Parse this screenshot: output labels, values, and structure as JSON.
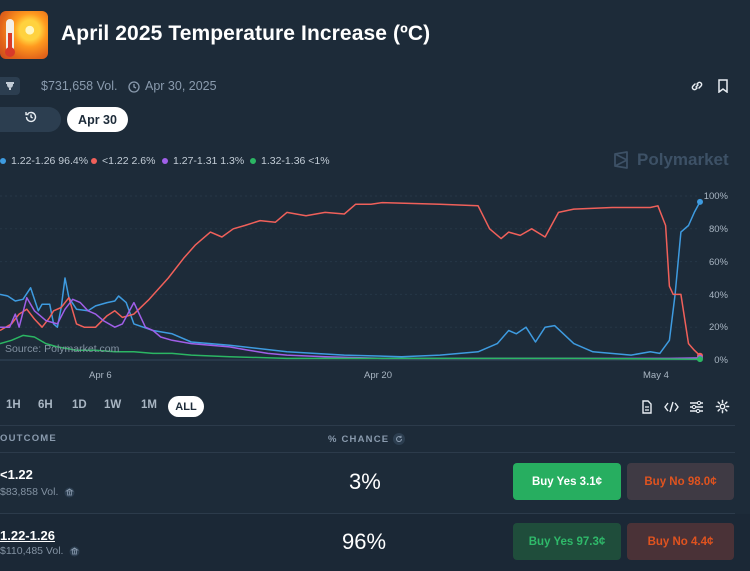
{
  "header": {
    "title": "April 2025 Temperature Increase (ºC)",
    "volume": "$731,658 Vol.",
    "date": "Apr 30, 2025"
  },
  "controls": {
    "date_pill": "Apr 30"
  },
  "legend": [
    {
      "label": "1.22-1.26 96.4%",
      "color": "#3e9be0"
    },
    {
      "label": "<1.22 2.6%",
      "color": "#f0605a"
    },
    {
      "label": "1.27-1.31 1.3%",
      "color": "#a05fe8"
    },
    {
      "label": "1.32-1.36 <1%",
      "color": "#2bb663"
    }
  ],
  "brand": "Polymarket",
  "chart": {
    "source": "Source: Polymarket.com",
    "y_ticks": [
      "100%",
      "80%",
      "60%",
      "40%",
      "20%",
      "0%"
    ],
    "x_ticks": [
      "Apr 6",
      "Apr 20",
      "May 4"
    ]
  },
  "chart_data": {
    "type": "line",
    "ylim": [
      0,
      100
    ],
    "x_ticks": [
      "Apr 6",
      "Apr 20",
      "May 4"
    ],
    "series": [
      {
        "name": "1.22-1.26",
        "color": "#3e9be0",
        "values": [
          [
            0,
            40
          ],
          [
            4,
            39
          ],
          [
            8,
            36
          ],
          [
            12,
            37
          ],
          [
            16,
            44
          ],
          [
            20,
            30
          ],
          [
            22,
            34
          ],
          [
            26,
            34
          ],
          [
            28,
            22
          ],
          [
            30,
            20
          ],
          [
            32,
            32
          ],
          [
            34,
            50
          ],
          [
            36,
            38
          ],
          [
            40,
            31
          ],
          [
            46,
            30
          ],
          [
            50,
            33
          ],
          [
            56,
            35
          ],
          [
            60,
            36
          ],
          [
            62,
            39
          ],
          [
            66,
            35
          ],
          [
            70,
            22
          ],
          [
            80,
            18
          ],
          [
            90,
            16
          ],
          [
            100,
            11
          ],
          [
            120,
            9
          ],
          [
            150,
            5
          ],
          [
            180,
            3
          ],
          [
            210,
            2
          ],
          [
            230,
            3
          ],
          [
            250,
            5
          ],
          [
            260,
            10
          ],
          [
            266,
            18
          ],
          [
            270,
            16
          ],
          [
            275,
            20
          ],
          [
            280,
            11
          ],
          [
            285,
            20
          ],
          [
            290,
            21
          ],
          [
            300,
            10
          ],
          [
            310,
            5
          ],
          [
            330,
            3
          ],
          [
            340,
            5
          ],
          [
            345,
            4
          ],
          [
            350,
            12
          ],
          [
            353,
            40
          ],
          [
            356,
            78
          ],
          [
            360,
            82
          ],
          [
            363,
            90
          ],
          [
            366,
            96.4
          ]
        ]
      },
      {
        "name": "<1.22",
        "color": "#f0605a",
        "values": [
          [
            0,
            18
          ],
          [
            6,
            22
          ],
          [
            10,
            28
          ],
          [
            14,
            31
          ],
          [
            18,
            25
          ],
          [
            22,
            20
          ],
          [
            26,
            26
          ],
          [
            28,
            30
          ],
          [
            32,
            32
          ],
          [
            36,
            38
          ],
          [
            40,
            22
          ],
          [
            44,
            20
          ],
          [
            50,
            20
          ],
          [
            56,
            27
          ],
          [
            60,
            30
          ],
          [
            64,
            26
          ],
          [
            70,
            28
          ],
          [
            78,
            37
          ],
          [
            88,
            50
          ],
          [
            96,
            62
          ],
          [
            102,
            70
          ],
          [
            110,
            78
          ],
          [
            116,
            75
          ],
          [
            122,
            80
          ],
          [
            128,
            82
          ],
          [
            136,
            85
          ],
          [
            144,
            84
          ],
          [
            150,
            90
          ],
          [
            160,
            88
          ],
          [
            170,
            90
          ],
          [
            180,
            89
          ],
          [
            186,
            95
          ],
          [
            194,
            95
          ],
          [
            200,
            96
          ],
          [
            230,
            95
          ],
          [
            250,
            94
          ],
          [
            256,
            80
          ],
          [
            262,
            74
          ],
          [
            266,
            78
          ],
          [
            272,
            76
          ],
          [
            278,
            80
          ],
          [
            285,
            75
          ],
          [
            292,
            90
          ],
          [
            300,
            92
          ],
          [
            320,
            93
          ],
          [
            340,
            93
          ],
          [
            344,
            94
          ],
          [
            348,
            82
          ],
          [
            350,
            45
          ],
          [
            352,
            40
          ],
          [
            356,
            40
          ],
          [
            360,
            10
          ],
          [
            363,
            6
          ],
          [
            366,
            2.6
          ]
        ]
      },
      {
        "name": "1.27-1.31",
        "color": "#a05fe8",
        "values": [
          [
            0,
            20
          ],
          [
            5,
            20
          ],
          [
            8,
            28
          ],
          [
            10,
            20
          ],
          [
            14,
            38
          ],
          [
            18,
            30
          ],
          [
            24,
            24
          ],
          [
            30,
            22
          ],
          [
            34,
            31
          ],
          [
            38,
            37
          ],
          [
            42,
            35
          ],
          [
            46,
            30
          ],
          [
            50,
            28
          ],
          [
            54,
            24
          ],
          [
            60,
            20
          ],
          [
            64,
            22
          ],
          [
            70,
            35
          ],
          [
            76,
            20
          ],
          [
            80,
            18
          ],
          [
            84,
            14
          ],
          [
            90,
            12
          ],
          [
            100,
            10
          ],
          [
            110,
            9
          ],
          [
            120,
            8
          ],
          [
            130,
            6
          ],
          [
            140,
            4
          ],
          [
            150,
            3
          ],
          [
            170,
            2
          ],
          [
            200,
            1
          ],
          [
            250,
            1
          ],
          [
            300,
            1
          ],
          [
            350,
            1
          ],
          [
            366,
            1.3
          ]
        ]
      },
      {
        "name": "1.32-1.36",
        "color": "#2bb663",
        "values": [
          [
            0,
            10
          ],
          [
            6,
            12
          ],
          [
            12,
            15
          ],
          [
            18,
            14
          ],
          [
            24,
            10
          ],
          [
            30,
            8
          ],
          [
            40,
            6
          ],
          [
            50,
            6
          ],
          [
            60,
            5
          ],
          [
            70,
            5
          ],
          [
            80,
            4
          ],
          [
            90,
            4
          ],
          [
            100,
            3
          ],
          [
            120,
            2
          ],
          [
            150,
            1
          ],
          [
            200,
            1
          ],
          [
            250,
            1
          ],
          [
            300,
            1
          ],
          [
            366,
            0.5
          ]
        ]
      }
    ]
  },
  "timeframes": [
    "1H",
    "6H",
    "1D",
    "1W",
    "1M",
    "ALL"
  ],
  "table": {
    "col_outcome": "OUTCOME",
    "col_chance": "% CHANCE",
    "rows": [
      {
        "name": "<1.22",
        "volume": "$83,858 Vol.",
        "chance": "3%",
        "buy_yes": "Buy Yes 3.1¢",
        "buy_no": "Buy No 98.0¢"
      },
      {
        "name": "1.22-1.26",
        "volume": "$110,485 Vol.",
        "chance": "96%",
        "buy_yes": "Buy Yes 97.3¢",
        "buy_no": "Buy No 4.4¢"
      }
    ]
  },
  "colors": {
    "bg": "#1d2b39",
    "yes_green": "#27ae60",
    "no_red": "#e0531f"
  }
}
